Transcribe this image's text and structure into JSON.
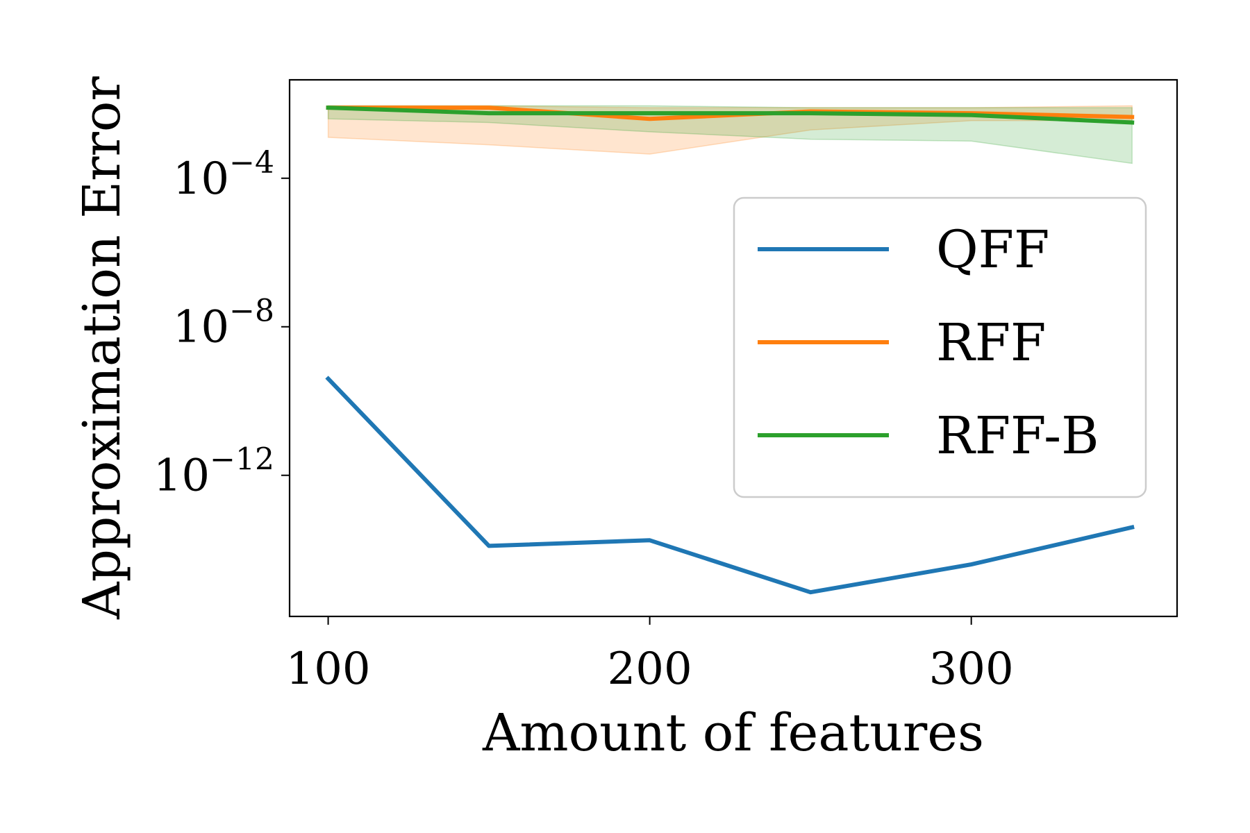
{
  "chart_data": {
    "type": "line",
    "title": "",
    "xlabel": "Amount of features",
    "ylabel": "Approximation Error",
    "yscale": "log",
    "xlim": [
      88,
      364
    ],
    "ylim_log10": [
      -15.8,
      -1.35
    ],
    "x_ticks": [
      100,
      200,
      300
    ],
    "x_tick_labels": [
      "100",
      "200",
      "300"
    ],
    "y_ticks_log10": [
      -4,
      -8,
      -12
    ],
    "y_tick_labels": [
      {
        "base": "10",
        "exp": "−4"
      },
      {
        "base": "10",
        "exp": "−8"
      },
      {
        "base": "10",
        "exp": "−12"
      }
    ],
    "grid": false,
    "legend_position": "center-right",
    "x": [
      100,
      150,
      200,
      250,
      300,
      350
    ],
    "series": [
      {
        "name": "QFF",
        "color": "#1f77b4",
        "log10_values": [
          -9.4,
          -13.9,
          -13.75,
          -15.15,
          -14.4,
          -13.4
        ]
      },
      {
        "name": "RFF",
        "color": "#ff7f0e",
        "log10_values": [
          -2.1,
          -2.1,
          -2.4,
          -2.2,
          -2.25,
          -2.35
        ],
        "band_log10_low": [
          -2.9,
          -3.1,
          -3.35,
          -2.7,
          -2.45,
          -2.45
        ],
        "band_log10_high": [
          -2.05,
          -2.05,
          -2.1,
          -2.1,
          -2.1,
          -2.05
        ]
      },
      {
        "name": "RFF-B",
        "color": "#2ca02c",
        "log10_values": [
          -2.1,
          -2.25,
          -2.25,
          -2.25,
          -2.3,
          -2.5
        ],
        "band_log10_low": [
          -2.4,
          -2.5,
          -2.75,
          -2.95,
          -3.0,
          -3.6
        ],
        "band_log10_high": [
          -2.05,
          -2.05,
          -2.05,
          -2.1,
          -2.1,
          -2.1
        ]
      }
    ]
  }
}
